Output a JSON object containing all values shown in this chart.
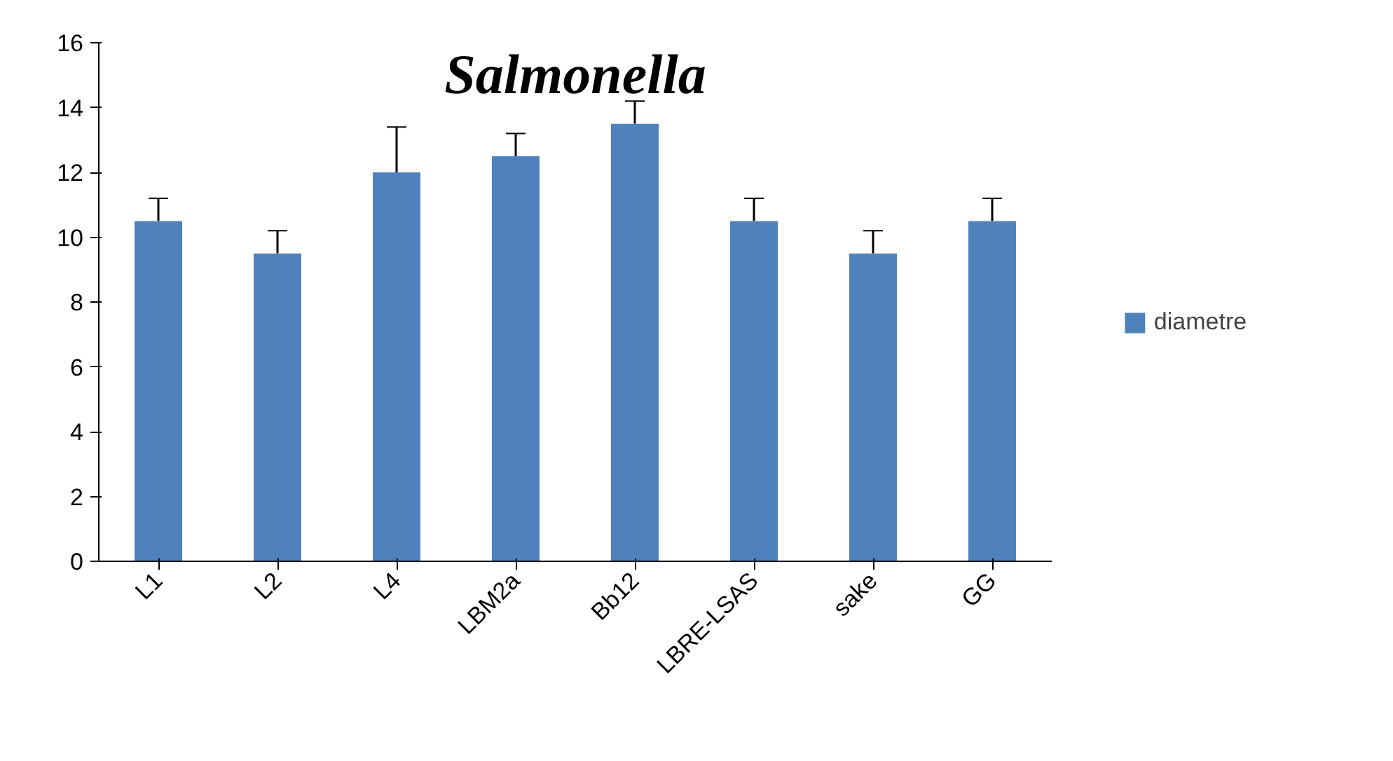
{
  "chart_data": {
    "type": "bar",
    "title": "Salmonella",
    "categories": [
      "L1",
      "L2",
      "L4",
      "LBM2a",
      "Bb12",
      "LBRE-LSAS",
      "sake",
      "GG"
    ],
    "series": [
      {
        "name": "diametre",
        "color": "#4f81bd",
        "values": [
          10.5,
          9.5,
          12,
          12.5,
          13.5,
          10.5,
          9.5,
          10.5
        ],
        "errors": [
          [
            10.5,
            11.2
          ],
          [
            9.5,
            10.2
          ],
          [
            12,
            13.4
          ],
          [
            12.5,
            13.2
          ],
          [
            13.5,
            14.2
          ],
          [
            10.5,
            11.2
          ],
          [
            9.5,
            10.2
          ],
          [
            10.5,
            11.2
          ]
        ]
      }
    ],
    "ylim": [
      0,
      16
    ],
    "yticks": [
      0,
      2,
      4,
      6,
      8,
      10,
      12,
      14,
      16
    ],
    "grid": false,
    "legend": "right"
  }
}
